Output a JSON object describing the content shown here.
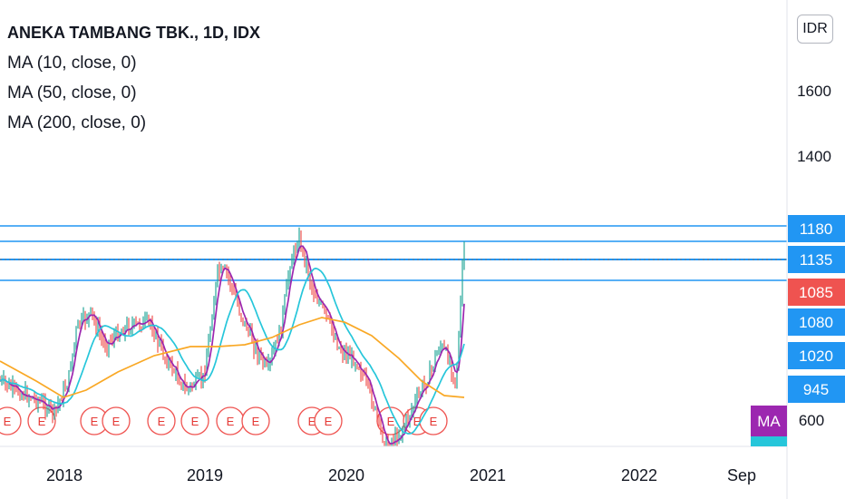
{
  "header": {
    "symbol_title": "ANEKA TAMBANG TBK., 1D, IDX",
    "indicators": [
      "MA (10, close, 0)",
      "MA (50, close, 0)",
      "MA (200, close, 0)"
    ],
    "currency": "IDR"
  },
  "chart_data": {
    "type": "line",
    "title": "ANEKA TAMBANG TBK., 1D, IDX",
    "y_ticks": [
      1600,
      1400
    ],
    "x_ticks": [
      "2018",
      "2019",
      "2020",
      "2021",
      "2022",
      "Sep"
    ],
    "price_labels": [
      {
        "value": "1180",
        "style": "line"
      },
      {
        "value": "1135",
        "style": "line"
      },
      {
        "value": "1085",
        "style": "last"
      },
      {
        "value": "1080",
        "style": "line"
      },
      {
        "value": "1020",
        "style": "line"
      },
      {
        "value": "945",
        "style": "line"
      },
      {
        "value": "600",
        "style": "plain"
      }
    ],
    "horizontal_levels": [
      1180,
      1160,
      1135,
      1085
    ],
    "ma_badge": "MA",
    "earnings_marker": "E",
    "earnings_count": 16,
    "colors": {
      "price_up": "#26a69a",
      "price_down": "#ef5350",
      "ma10": "#9c27b0",
      "ma50": "#26c6da",
      "ma200": "#f9a825",
      "level_line": "#2196f3",
      "last_price": "#ef5350",
      "ma_badge": "#9c27b0"
    }
  }
}
